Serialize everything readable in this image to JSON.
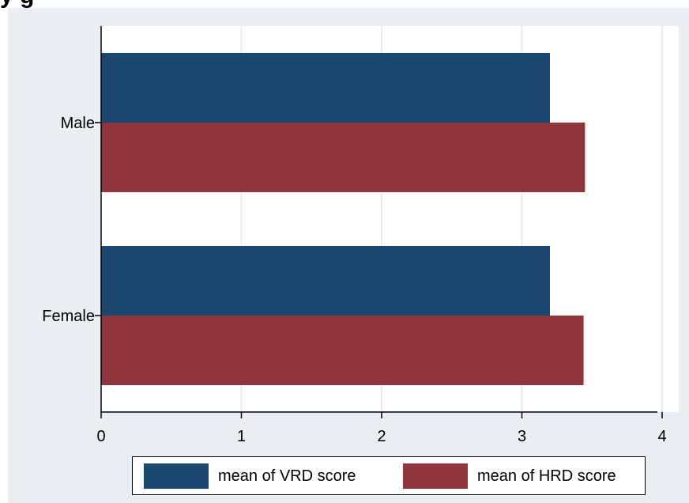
{
  "header_fragment": "y g",
  "chart_data": {
    "type": "bar",
    "orientation": "horizontal",
    "categories": [
      "Male",
      "Female"
    ],
    "series": [
      {
        "name": "mean of VRD score",
        "values": [
          3.2,
          3.2
        ],
        "color": "#1a476f"
      },
      {
        "name": "mean of HRD score",
        "values": [
          3.45,
          3.44
        ],
        "color": "#90353b"
      }
    ],
    "x_ticks": [
      "0",
      "1",
      "2",
      "3",
      "4"
    ],
    "xlim": [
      0,
      4.15
    ],
    "grid": true,
    "legend_position": "bottom"
  }
}
